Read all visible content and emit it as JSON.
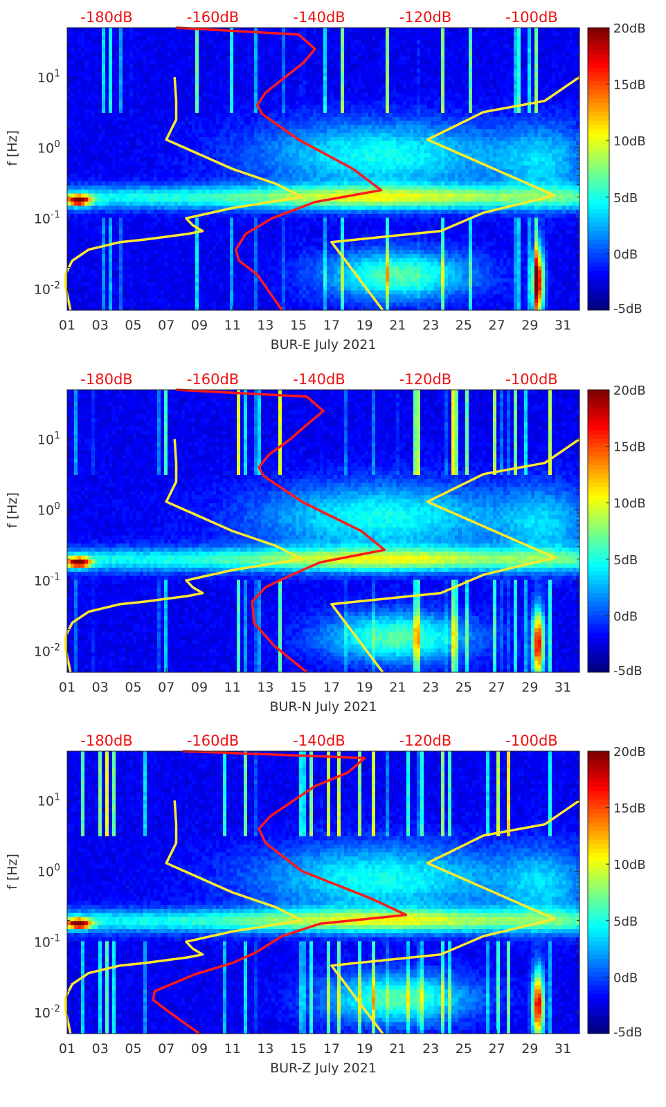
{
  "chart_data": [
    {
      "type": "heatmap",
      "title": "",
      "xlabel": "BUR-E July 2021",
      "ylabel": "f [Hz]",
      "xlim": [
        1,
        32
      ],
      "ylim": [
        0.005,
        50
      ],
      "yscale": "log",
      "x_ticks": [
        "01",
        "03",
        "05",
        "07",
        "09",
        "11",
        "13",
        "15",
        "17",
        "19",
        "21",
        "23",
        "25",
        "27",
        "29",
        "31"
      ],
      "y_ticks": [
        "10^-2",
        "10^-1",
        "10^0",
        "10^1"
      ],
      "top_axis_ticks": [
        "-180dB",
        "-160dB",
        "-140dB",
        "-120dB",
        "-100dB"
      ],
      "colorbar": {
        "range": [
          -5,
          20
        ],
        "ticks": [
          "20dB",
          "15dB",
          "10dB",
          "5dB",
          "0dB",
          "-5dB"
        ],
        "colormap": "jet"
      },
      "series": [
        {
          "color": "#ffea2a",
          "points": [
            [
              1.2,
              0.005
            ],
            [
              0.9,
              0.011
            ],
            [
              0.9,
              0.016
            ],
            [
              1.3,
              0.025
            ],
            [
              2.3,
              0.036
            ],
            [
              4.2,
              0.046
            ],
            [
              5.7,
              0.05
            ],
            [
              8.3,
              0.06
            ],
            [
              9.2,
              0.066
            ],
            [
              8.6,
              0.08
            ],
            [
              8.2,
              0.1
            ],
            [
              11.0,
              0.14
            ],
            [
              15.2,
              0.2
            ],
            [
              13.6,
              0.31
            ],
            [
              11.0,
              0.5
            ],
            [
              7.0,
              1.3
            ],
            [
              7.6,
              2.5
            ],
            [
              7.6,
              4.6
            ],
            [
              7.5,
              10.0
            ]
          ]
        },
        {
          "color": "#ff1a1a",
          "points": [
            [
              14.0,
              0.005
            ],
            [
              12.5,
              0.016
            ],
            [
              11.4,
              0.025
            ],
            [
              11.2,
              0.036
            ],
            [
              11.8,
              0.06
            ],
            [
              13.4,
              0.1
            ],
            [
              16.0,
              0.17
            ],
            [
              20.0,
              0.25
            ],
            [
              18.3,
              0.5
            ],
            [
              15.0,
              1.3
            ],
            [
              12.8,
              3.0
            ],
            [
              12.5,
              4.0
            ],
            [
              13.0,
              6.0
            ],
            [
              14.2,
              10.0
            ],
            [
              15.3,
              16.0
            ],
            [
              16.0,
              25.0
            ],
            [
              15.0,
              40.0
            ],
            [
              7.6,
              50.0
            ]
          ]
        },
        {
          "color": "#ffea2a",
          "points": [
            [
              20.1,
              0.005
            ],
            [
              17.0,
              0.046
            ],
            [
              23.6,
              0.066
            ],
            [
              26.2,
              0.12
            ],
            [
              30.5,
              0.21
            ],
            [
              22.8,
              1.3
            ],
            [
              26.2,
              3.2
            ],
            [
              29.9,
              4.6
            ],
            [
              32.0,
              10.0
            ]
          ]
        }
      ]
    },
    {
      "type": "heatmap",
      "title": "",
      "xlabel": "BUR-N July 2021",
      "ylabel": "f [Hz]",
      "xlim": [
        1,
        32
      ],
      "ylim": [
        0.005,
        50
      ],
      "yscale": "log",
      "x_ticks": [
        "01",
        "03",
        "05",
        "07",
        "09",
        "11",
        "13",
        "15",
        "17",
        "19",
        "21",
        "23",
        "25",
        "27",
        "29",
        "31"
      ],
      "y_ticks": [
        "10^-2",
        "10^-1",
        "10^0",
        "10^1"
      ],
      "top_axis_ticks": [
        "-180dB",
        "-160dB",
        "-140dB",
        "-120dB",
        "-100dB"
      ],
      "colorbar": {
        "range": [
          -5,
          20
        ],
        "ticks": [
          "20dB",
          "15dB",
          "10dB",
          "5dB",
          "0dB",
          "-5dB"
        ],
        "colormap": "jet"
      },
      "series": [
        {
          "color": "#ffea2a",
          "points": [
            [
              1.2,
              0.005
            ],
            [
              0.9,
              0.011
            ],
            [
              0.9,
              0.016
            ],
            [
              1.3,
              0.025
            ],
            [
              2.3,
              0.036
            ],
            [
              4.2,
              0.046
            ],
            [
              5.7,
              0.05
            ],
            [
              8.3,
              0.06
            ],
            [
              9.2,
              0.066
            ],
            [
              8.6,
              0.08
            ],
            [
              8.2,
              0.1
            ],
            [
              11.0,
              0.14
            ],
            [
              15.2,
              0.2
            ],
            [
              13.6,
              0.31
            ],
            [
              11.0,
              0.5
            ],
            [
              7.0,
              1.3
            ],
            [
              7.6,
              2.5
            ],
            [
              7.6,
              4.6
            ],
            [
              7.5,
              10.0
            ]
          ]
        },
        {
          "color": "#ff1a1a",
          "points": [
            [
              15.5,
              0.005
            ],
            [
              13.5,
              0.012
            ],
            [
              12.3,
              0.025
            ],
            [
              12.2,
              0.05
            ],
            [
              13.0,
              0.08
            ],
            [
              14.6,
              0.12
            ],
            [
              16.3,
              0.18
            ],
            [
              20.2,
              0.27
            ],
            [
              18.8,
              0.5
            ],
            [
              15.2,
              1.3
            ],
            [
              12.9,
              3.0
            ],
            [
              12.6,
              4.0
            ],
            [
              13.2,
              6.0
            ],
            [
              14.5,
              10.0
            ],
            [
              15.5,
              16.0
            ],
            [
              16.5,
              25.0
            ],
            [
              15.5,
              40.0
            ],
            [
              7.6,
              50.0
            ]
          ]
        },
        {
          "color": "#ffea2a",
          "points": [
            [
              20.1,
              0.005
            ],
            [
              17.0,
              0.046
            ],
            [
              23.6,
              0.066
            ],
            [
              26.2,
              0.12
            ],
            [
              30.5,
              0.21
            ],
            [
              22.8,
              1.3
            ],
            [
              26.2,
              3.2
            ],
            [
              29.9,
              4.6
            ],
            [
              32.0,
              10.0
            ]
          ]
        }
      ]
    },
    {
      "type": "heatmap",
      "title": "",
      "xlabel": "BUR-Z July 2021",
      "ylabel": "f [Hz]",
      "xlim": [
        1,
        32
      ],
      "ylim": [
        0.005,
        50
      ],
      "yscale": "log",
      "x_ticks": [
        "01",
        "03",
        "05",
        "07",
        "09",
        "11",
        "13",
        "15",
        "17",
        "19",
        "21",
        "23",
        "25",
        "27",
        "29",
        "31"
      ],
      "y_ticks": [
        "10^-2",
        "10^-1",
        "10^0",
        "10^1"
      ],
      "top_axis_ticks": [
        "-180dB",
        "-160dB",
        "-140dB",
        "-120dB",
        "-100dB"
      ],
      "colorbar": {
        "range": [
          -5,
          20
        ],
        "ticks": [
          "20dB",
          "15dB",
          "10dB",
          "5dB",
          "0dB",
          "-5dB"
        ],
        "colormap": "jet"
      },
      "series": [
        {
          "color": "#ffea2a",
          "points": [
            [
              1.2,
              0.005
            ],
            [
              0.9,
              0.011
            ],
            [
              0.9,
              0.016
            ],
            [
              1.3,
              0.025
            ],
            [
              2.3,
              0.036
            ],
            [
              4.2,
              0.046
            ],
            [
              5.7,
              0.05
            ],
            [
              8.3,
              0.06
            ],
            [
              9.2,
              0.066
            ],
            [
              8.6,
              0.08
            ],
            [
              8.2,
              0.1
            ],
            [
              11.0,
              0.14
            ],
            [
              15.2,
              0.2
            ],
            [
              13.6,
              0.31
            ],
            [
              11.0,
              0.5
            ],
            [
              7.0,
              1.3
            ],
            [
              7.6,
              2.5
            ],
            [
              7.6,
              4.6
            ],
            [
              7.5,
              10.0
            ]
          ]
        },
        {
          "color": "#ff1a1a",
          "points": [
            [
              9.0,
              0.005
            ],
            [
              7.2,
              0.01
            ],
            [
              6.2,
              0.015
            ],
            [
              6.3,
              0.02
            ],
            [
              8.8,
              0.035
            ],
            [
              11.0,
              0.05
            ],
            [
              12.4,
              0.07
            ],
            [
              14.0,
              0.12
            ],
            [
              16.3,
              0.18
            ],
            [
              21.5,
              0.24
            ],
            [
              19.5,
              0.4
            ],
            [
              15.2,
              1.0
            ],
            [
              13.0,
              2.5
            ],
            [
              12.6,
              4.0
            ],
            [
              13.3,
              6.0
            ],
            [
              14.7,
              10.0
            ],
            [
              16.0,
              16.0
            ],
            [
              18.0,
              25.0
            ],
            [
              19.0,
              40.0
            ],
            [
              8.0,
              50.0
            ]
          ]
        },
        {
          "color": "#ffea2a",
          "points": [
            [
              20.1,
              0.005
            ],
            [
              17.0,
              0.046
            ],
            [
              23.6,
              0.066
            ],
            [
              26.2,
              0.12
            ],
            [
              30.5,
              0.21
            ],
            [
              22.8,
              1.3
            ],
            [
              26.2,
              3.2
            ],
            [
              29.9,
              4.6
            ],
            [
              32.0,
              10.0
            ]
          ]
        }
      ]
    }
  ]
}
